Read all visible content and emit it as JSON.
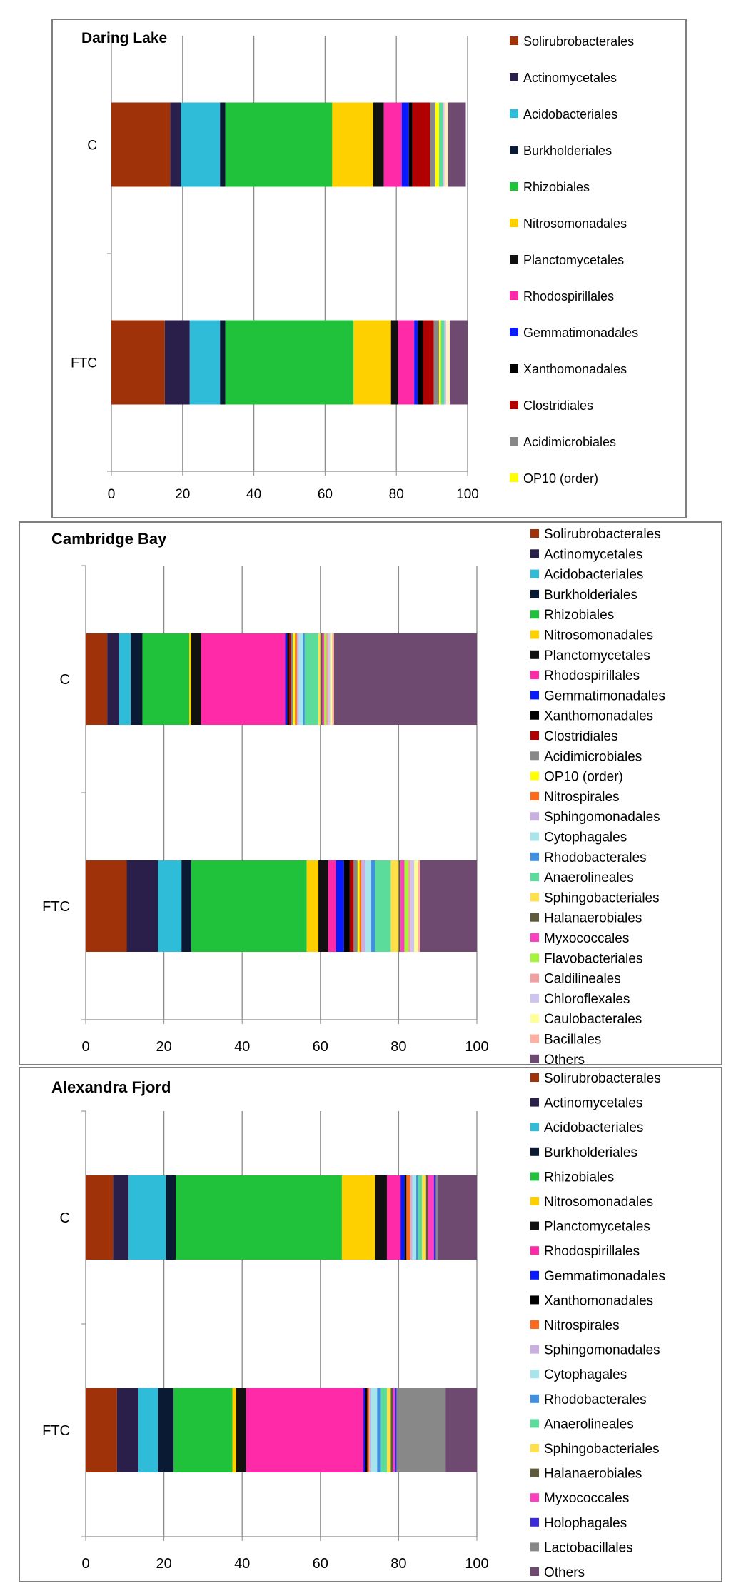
{
  "chart_data": [
    {
      "type": "stacked-horizontal-bar",
      "title": "Daring Lake",
      "categories": [
        "C",
        "FTC"
      ],
      "xlim": [
        0,
        100
      ],
      "xticks": [
        "0",
        "20",
        "40",
        "60",
        "80",
        "100"
      ],
      "legend_position": "right",
      "series": [
        {
          "name": "Solirubrobacterales",
          "color": "#a0320a",
          "values": [
            16.5,
            15
          ]
        },
        {
          "name": "Actinomycetales",
          "color": "#2a1f4a",
          "values": [
            3,
            7
          ]
        },
        {
          "name": "Acidobacteriales",
          "color": "#2fbcd8",
          "values": [
            11,
            8.5
          ]
        },
        {
          "name": "Burkholderiales",
          "color": "#0a1a33",
          "values": [
            1.5,
            1.5
          ]
        },
        {
          "name": "Rhizobiales",
          "color": "#1fc23a",
          "values": [
            30,
            36
          ]
        },
        {
          "name": "Nitrosomonadales",
          "color": "#ffd000",
          "values": [
            11.5,
            10.5
          ]
        },
        {
          "name": "Planctomycetales",
          "color": "#111111",
          "values": [
            3,
            2
          ]
        },
        {
          "name": "Rhodospirillales",
          "color": "#ff2aa8",
          "values": [
            5,
            4.5
          ]
        },
        {
          "name": "Gemmatimonadales",
          "color": "#0a1aff",
          "values": [
            2,
            1
          ]
        },
        {
          "name": "Xanthomonadales",
          "color": "#000000",
          "values": [
            1,
            1.5
          ]
        },
        {
          "name": "Clostridiales",
          "color": "#b00000",
          "values": [
            5,
            3
          ]
        },
        {
          "name": "Acidimicrobiales",
          "color": "#888888",
          "values": [
            1.5,
            1.5
          ]
        },
        {
          "name": "OP10 (order)",
          "color": "#ffff00",
          "values": [
            1,
            0.5
          ]
        },
        {
          "name": "",
          "color": "#5bdc9a",
          "values": [
            1,
            1
          ]
        },
        {
          "name": "",
          "color": "#cfc4ee",
          "values": [
            0.5,
            0.5
          ]
        },
        {
          "name": "",
          "color": "#ffeec2",
          "values": [
            1,
            1
          ]
        },
        {
          "name": "",
          "color": "#6f4a70",
          "values": [
            5,
            5.5
          ]
        }
      ]
    },
    {
      "type": "stacked-horizontal-bar",
      "title": "Cambridge Bay",
      "categories": [
        "C",
        "FTC"
      ],
      "xlim": [
        0,
        100
      ],
      "xticks": [
        "0",
        "20",
        "40",
        "60",
        "80",
        "100"
      ],
      "legend_position": "right",
      "series": [
        {
          "name": "Solirubrobacterales",
          "color": "#a0320a",
          "values": [
            5.5,
            10.5
          ]
        },
        {
          "name": "Actinomycetales",
          "color": "#2a1f4a",
          "values": [
            3,
            8
          ]
        },
        {
          "name": "Acidobacteriales",
          "color": "#2fbcd8",
          "values": [
            3,
            6
          ]
        },
        {
          "name": "Burkholderiales",
          "color": "#0a1a33",
          "values": [
            3,
            2.5
          ]
        },
        {
          "name": "Rhizobiales",
          "color": "#1fc23a",
          "values": [
            12,
            29.5
          ]
        },
        {
          "name": "Nitrosomonadales",
          "color": "#ffd000",
          "values": [
            0.5,
            3
          ]
        },
        {
          "name": "Planctomycetales",
          "color": "#111111",
          "values": [
            2.5,
            2.5
          ]
        },
        {
          "name": "Rhodospirillales",
          "color": "#ff2aa8",
          "values": [
            21.5,
            2
          ]
        },
        {
          "name": "Gemmatimonadales",
          "color": "#0a1aff",
          "values": [
            0.5,
            2
          ]
        },
        {
          "name": "Xanthomonadales",
          "color": "#000000",
          "values": [
            0.5,
            1.5
          ]
        },
        {
          "name": "Clostridiales",
          "color": "#b00000",
          "values": [
            0.5,
            1
          ]
        },
        {
          "name": "Acidimicrobiales",
          "color": "#888888",
          "values": [
            0.5,
            1
          ]
        },
        {
          "name": "OP10 (order)",
          "color": "#ffff00",
          "values": [
            0.5,
            0.5
          ]
        },
        {
          "name": "Nitrospirales",
          "color": "#ff6a1a",
          "values": [
            0.5,
            0.5
          ]
        },
        {
          "name": "Sphingomonadales",
          "color": "#c9b0e0",
          "values": [
            0.5,
            1
          ]
        },
        {
          "name": "Cytophagales",
          "color": "#a8e4ec",
          "values": [
            1,
            1.5
          ]
        },
        {
          "name": "Rhodobacterales",
          "color": "#3f90e0",
          "values": [
            0.5,
            1
          ]
        },
        {
          "name": "Anaerolineales",
          "color": "#5bdc9a",
          "values": [
            3.5,
            4
          ]
        },
        {
          "name": "Sphingobacteriales",
          "color": "#ffe04a",
          "values": [
            0.5,
            2
          ]
        },
        {
          "name": "Halanaerobiales",
          "color": "#5e5a3a",
          "values": [
            0.5,
            0.5
          ]
        },
        {
          "name": "Myxococcales",
          "color": "#ff3fbf",
          "values": [
            0.5,
            1
          ]
        },
        {
          "name": "Flavobacteriales",
          "color": "#a6f53a",
          "values": [
            0.5,
            1
          ]
        },
        {
          "name": "Caldilineales",
          "color": "#f0a0a0",
          "values": [
            0.5,
            0.5
          ]
        },
        {
          "name": "Chloroflexales",
          "color": "#cfc4ee",
          "values": [
            0.5,
            1
          ]
        },
        {
          "name": "Caulobacterales",
          "color": "#ffff9a",
          "values": [
            0.5,
            1
          ]
        },
        {
          "name": "Bacillales",
          "color": "#ffb0a0",
          "values": [
            0.5,
            0.5
          ]
        },
        {
          "name": "Others",
          "color": "#6f4a70",
          "values": [
            38.5,
            15
          ]
        }
      ]
    },
    {
      "type": "stacked-horizontal-bar",
      "title": "Alexandra Fjord",
      "categories": [
        "C",
        "FTC"
      ],
      "xlim": [
        0,
        100
      ],
      "xticks": [
        "0",
        "20",
        "40",
        "60",
        "80",
        "100"
      ],
      "legend_position": "right",
      "series": [
        {
          "name": "Solirubrobacterales",
          "color": "#a0320a",
          "values": [
            7,
            8
          ]
        },
        {
          "name": "Actinomycetales",
          "color": "#2a1f4a",
          "values": [
            4,
            5.5
          ]
        },
        {
          "name": "Acidobacteriales",
          "color": "#2fbcd8",
          "values": [
            9.5,
            5
          ]
        },
        {
          "name": "Burkholderiales",
          "color": "#0a1a33",
          "values": [
            2.5,
            4
          ]
        },
        {
          "name": "Rhizobiales",
          "color": "#1fc23a",
          "values": [
            42.5,
            15
          ]
        },
        {
          "name": "Nitrosomonadales",
          "color": "#ffd000",
          "values": [
            8.5,
            1
          ]
        },
        {
          "name": "Planctomycetales",
          "color": "#111111",
          "values": [
            3,
            2.5
          ]
        },
        {
          "name": "Rhodospirillales",
          "color": "#ff2aa8",
          "values": [
            3.5,
            30
          ]
        },
        {
          "name": "Gemmatimonadales",
          "color": "#0a1aff",
          "values": [
            1,
            0.5
          ]
        },
        {
          "name": "Xanthomonadales",
          "color": "#000000",
          "values": [
            0.5,
            0.5
          ]
        },
        {
          "name": "Nitrospirales",
          "color": "#ff6a1a",
          "values": [
            1,
            0.5
          ]
        },
        {
          "name": "Sphingomonadales",
          "color": "#c9b0e0",
          "values": [
            0.5,
            0.5
          ]
        },
        {
          "name": "Cytophagales",
          "color": "#a8e4ec",
          "values": [
            1,
            1.5
          ]
        },
        {
          "name": "Rhodobacterales",
          "color": "#3f90e0",
          "values": [
            0.5,
            1
          ]
        },
        {
          "name": "Anaerolineales",
          "color": "#5bdc9a",
          "values": [
            1,
            1.5
          ]
        },
        {
          "name": "Sphingobacteriales",
          "color": "#ffe04a",
          "values": [
            1,
            1
          ]
        },
        {
          "name": "Halanaerobiales",
          "color": "#5e5a3a",
          "values": [
            0.5,
            0.5
          ]
        },
        {
          "name": "Myxococcales",
          "color": "#ff3fbf",
          "values": [
            1.5,
            0.5
          ]
        },
        {
          "name": "Holophagales",
          "color": "#3b2ad8",
          "values": [
            0.5,
            0.5
          ]
        },
        {
          "name": "Lactobacillales",
          "color": "#888888",
          "values": [
            0.5,
            12.5
          ]
        },
        {
          "name": "Others",
          "color": "#6f4a70",
          "values": [
            10.5,
            8
          ]
        }
      ]
    }
  ]
}
